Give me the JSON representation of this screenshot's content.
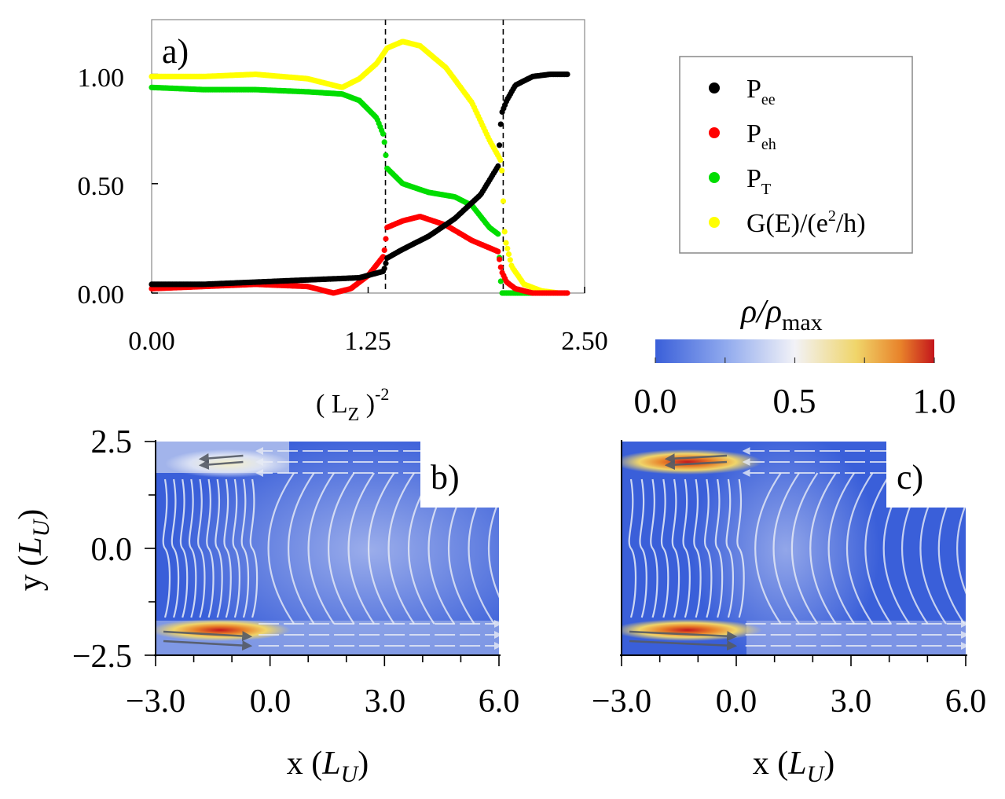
{
  "chart_data": [
    {
      "panel_label": "a)",
      "type": "scatter",
      "xlabel_base": "( L",
      "xlabel_sub": "Z",
      "xlabel_close": " )",
      "xlabel_sup": "-2",
      "ylabel": "",
      "xlim": [
        0.0,
        2.5
      ],
      "ylim": [
        0.0,
        1.25
      ],
      "xticks": [
        "0.00",
        "1.25",
        "2.50"
      ],
      "yticks": [
        "0.00",
        "0.50",
        "1.00"
      ],
      "vlines": [
        1.35,
        2.03
      ],
      "legend": {
        "placement": "right",
        "entries": [
          {
            "main": "P",
            "sub": "ee",
            "sup": "",
            "tail": "",
            "color": "#000000"
          },
          {
            "main": "P",
            "sub": "eh",
            "sup": "",
            "tail": "",
            "color": "#ff0000"
          },
          {
            "main": "P",
            "sub": "T",
            "sup": "",
            "tail": "",
            "color": "#00dd00"
          },
          {
            "main": "G(E)/(e",
            "sub": "",
            "sup": "2",
            "tail": "/h)",
            "color": "#ffff00"
          }
        ]
      },
      "series": [
        {
          "name": "P_ee",
          "color": "#000000",
          "x": [
            0.0,
            0.3,
            0.6,
            0.9,
            1.2,
            1.34,
            1.36,
            1.45,
            1.6,
            1.75,
            1.9,
            2.0,
            2.02,
            2.05,
            2.1,
            2.2,
            2.3,
            2.4
          ],
          "y": [
            0.04,
            0.04,
            0.05,
            0.06,
            0.07,
            0.1,
            0.16,
            0.2,
            0.26,
            0.34,
            0.45,
            0.58,
            0.82,
            0.88,
            0.95,
            0.99,
            1.0,
            1.0
          ]
        },
        {
          "name": "P_eh",
          "color": "#ff0000",
          "x": [
            0.0,
            0.3,
            0.6,
            0.9,
            1.05,
            1.15,
            1.25,
            1.34,
            1.36,
            1.45,
            1.55,
            1.7,
            1.85,
            2.0,
            2.02,
            2.05,
            2.1,
            2.2,
            2.3,
            2.4
          ],
          "y": [
            0.02,
            0.03,
            0.04,
            0.03,
            0.0,
            0.02,
            0.08,
            0.17,
            0.3,
            0.33,
            0.35,
            0.31,
            0.24,
            0.19,
            0.1,
            0.05,
            0.02,
            0.0,
            0.0,
            0.0
          ]
        },
        {
          "name": "P_T",
          "color": "#00dd00",
          "x": [
            0.0,
            0.3,
            0.6,
            0.9,
            1.1,
            1.2,
            1.3,
            1.34,
            1.36,
            1.45,
            1.6,
            1.75,
            1.85,
            1.95,
            2.0,
            2.02,
            2.05,
            2.1,
            2.2
          ],
          "y": [
            0.94,
            0.93,
            0.93,
            0.92,
            0.91,
            0.88,
            0.8,
            0.72,
            0.57,
            0.5,
            0.46,
            0.44,
            0.4,
            0.3,
            0.27,
            0.0,
            0.0,
            0.0,
            0.0
          ]
        },
        {
          "name": "G(E)/(e2/h)",
          "color": "#ffff00",
          "x": [
            0.0,
            0.3,
            0.6,
            0.9,
            1.1,
            1.2,
            1.3,
            1.36,
            1.45,
            1.55,
            1.7,
            1.85,
            1.95,
            2.02,
            2.04,
            2.08,
            2.15,
            2.25,
            2.35
          ],
          "y": [
            0.99,
            0.99,
            1.0,
            0.98,
            0.94,
            0.98,
            1.05,
            1.12,
            1.15,
            1.13,
            1.03,
            0.87,
            0.7,
            0.6,
            0.25,
            0.12,
            0.04,
            0.01,
            0.0
          ]
        }
      ]
    },
    {
      "panel_label": "b)",
      "type": "heatmap",
      "xlabel_main": "x (",
      "xlabel_unit": "L",
      "xlabel_sub": "U",
      "xlabel_close": ")",
      "ylabel_main": "y (",
      "ylabel_unit": "L",
      "ylabel_sub": "U",
      "ylabel_close": ")",
      "xlim": [
        -3.0,
        6.0
      ],
      "ylim": [
        -2.5,
        2.5
      ],
      "xticks": [
        "−3.0",
        "0.0",
        "3.0",
        "6.0"
      ],
      "yticks": [
        "−2.5",
        "0.0",
        "2.5"
      ],
      "hot_spots": [
        {
          "x": -1.5,
          "y": 1.9,
          "value": 0.5
        },
        {
          "x": -1.2,
          "y": -1.9,
          "value": 0.9
        }
      ]
    },
    {
      "panel_label": "c)",
      "type": "heatmap",
      "xlabel_main": "x (",
      "xlabel_unit": "L",
      "xlabel_sub": "U",
      "xlabel_close": ")",
      "xlim": [
        -3.0,
        6.0
      ],
      "ylim": [
        -2.5,
        2.5
      ],
      "xticks": [
        "−3.0",
        "0.0",
        "3.0",
        "6.0"
      ],
      "hot_spots": [
        {
          "x": -1.0,
          "y": 2.0,
          "value": 1.0
        },
        {
          "x": -1.0,
          "y": -1.9,
          "value": 1.0
        }
      ]
    }
  ],
  "colorbar": {
    "label_rho": "ρ/ρ",
    "label_sub": "max",
    "ticks": [
      "0.0",
      "0.5",
      "1.0"
    ],
    "range": [
      0.0,
      1.0
    ]
  }
}
